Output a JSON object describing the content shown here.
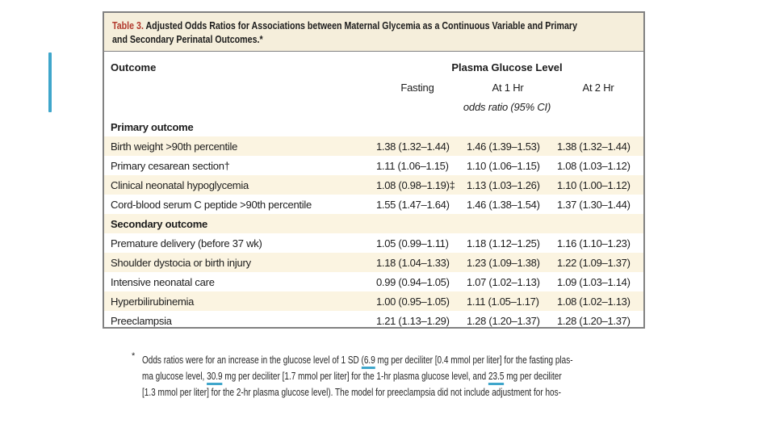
{
  "colors": {
    "table_label_red": "#b23a2e",
    "row_shade": "#fbf4e1",
    "title_background": "#f5eedb",
    "card_border": "#818181",
    "annotation_blue": "#3fa6cb",
    "page_background": "#ffffff"
  },
  "table": {
    "title": {
      "prefix": "Table 3.",
      "line1": " Adjusted Odds Ratios for Associations between Maternal Glycemia as a Continuous Variable and Primary",
      "line2": "and Secondary Perinatal Outcomes.*"
    },
    "header": {
      "outcome": "Outcome",
      "group": "Plasma Glucose Level",
      "columns": [
        "Fasting",
        "At 1 Hr",
        "At 2 Hr"
      ],
      "unit": "odds ratio (95% CI)"
    },
    "rows": [
      {
        "type": "section",
        "label": "Primary outcome",
        "values": [
          "",
          "",
          ""
        ]
      },
      {
        "type": "data",
        "label": "Birth weight >90th percentile",
        "values": [
          "1.38 (1.32–1.44)",
          "1.46 (1.39–1.53)",
          "1.38 (1.32–1.44)"
        ]
      },
      {
        "type": "data",
        "label": "Primary cesarean section†",
        "values": [
          "1.11 (1.06–1.15)",
          "1.10 (1.06–1.15)",
          "1.08 (1.03–1.12)"
        ]
      },
      {
        "type": "data",
        "label": "Clinical neonatal hypoglycemia",
        "values": [
          "1.08 (0.98–1.19)‡",
          "1.13 (1.03–1.26)",
          "1.10 (1.00–1.12)"
        ]
      },
      {
        "type": "data",
        "label": "Cord-blood serum C peptide >90th percentile",
        "values": [
          "1.55 (1.47–1.64)",
          "1.46 (1.38–1.54)",
          "1.37 (1.30–1.44)"
        ]
      },
      {
        "type": "section",
        "label": "Secondary outcome",
        "values": [
          "",
          "",
          ""
        ]
      },
      {
        "type": "data",
        "label": "Premature delivery (before 37 wk)",
        "values": [
          "1.05 (0.99–1.11)",
          "1.18 (1.12–1.25)",
          "1.16 (1.10–1.23)"
        ]
      },
      {
        "type": "data",
        "label": "Shoulder dystocia or birth injury",
        "values": [
          "1.18 (1.04–1.33)",
          "1.23 (1.09–1.38)",
          "1.22 (1.09–1.37)"
        ]
      },
      {
        "type": "data",
        "label": "Intensive neonatal care",
        "values": [
          "0.99 (0.94–1.05)",
          "1.07 (1.02–1.13)",
          "1.09 (1.03–1.14)"
        ]
      },
      {
        "type": "data",
        "label": "Hyperbilirubinemia",
        "values": [
          "1.00 (0.95–1.05)",
          "1.11 (1.05–1.17)",
          "1.08 (1.02–1.13)"
        ]
      },
      {
        "type": "data",
        "label": "Preeclampsia",
        "values": [
          "1.21 (1.13–1.29)",
          "1.28 (1.20–1.37)",
          "1.28 (1.20–1.37)"
        ]
      }
    ]
  },
  "footnote": {
    "marker": "*",
    "lines": [
      [
        {
          "text": "Odds ratios were for an increase in the glucose level of 1 SD "
        },
        {
          "text": "(6.9",
          "underline": true
        },
        {
          "text": " mg per deciliter [0.4 mmol per liter] for the fasting plas-"
        }
      ],
      [
        {
          "text": "ma glucose level, "
        },
        {
          "text": "30.9",
          "underline": true
        },
        {
          "text": " mg per deciliter [1.7 mmol per liter] for the 1-hr plasma glucose level, and "
        },
        {
          "text": "23.5",
          "underline": true
        },
        {
          "text": " mg per deciliter"
        }
      ],
      [
        {
          "text": "[1.3 mmol per liter] for the 2-hr plasma glucose level). The model for preeclampsia did not include adjustment for hos-"
        }
      ]
    ]
  }
}
